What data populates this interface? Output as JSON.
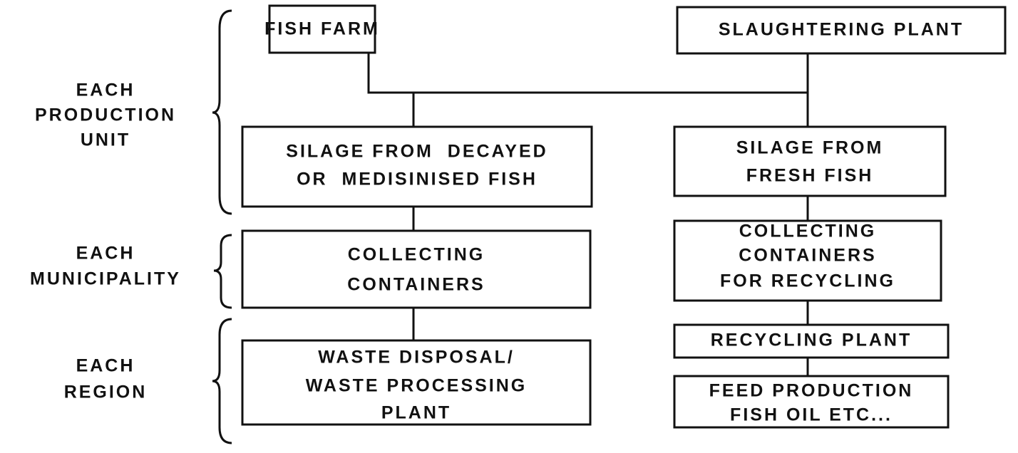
{
  "groups": [
    {
      "lines": [
        "EACH",
        "PRODUCTION",
        "UNIT"
      ]
    },
    {
      "lines": [
        "EACH",
        "MUNICIPALITY"
      ]
    },
    {
      "lines": [
        "EACH",
        "REGION"
      ]
    }
  ],
  "nodes": [
    {
      "lines": [
        "FISH FARM"
      ]
    },
    {
      "lines": [
        "SLAUGHTERING PLANT"
      ]
    },
    {
      "lines": [
        "SILAGE FROM  DECAYED",
        "OR  MEDISINISED FISH"
      ]
    },
    {
      "lines": [
        "SILAGE FROM",
        "FRESH FISH"
      ]
    },
    {
      "lines": [
        "COLLECTING",
        "CONTAINERS"
      ]
    },
    {
      "lines": [
        "COLLECTING",
        "CONTAINERS",
        "FOR RECYCLING"
      ]
    },
    {
      "lines": [
        "WASTE DISPOSAL/",
        "WASTE PROCESSING",
        "PLANT"
      ]
    },
    {
      "lines": [
        "RECYCLING PLANT"
      ]
    },
    {
      "lines": [
        "FEED PRODUCTION",
        "FISH OIL ETC..."
      ]
    }
  ]
}
